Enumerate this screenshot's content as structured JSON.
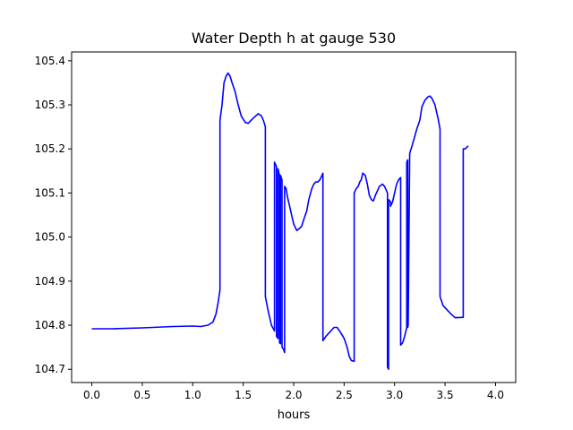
{
  "chart_data": {
    "type": "line",
    "title": "Water Depth h at gauge 530",
    "xlabel": "hours",
    "ylabel": "",
    "xlim": [
      -0.2,
      4.2
    ],
    "ylim": [
      104.67,
      105.42
    ],
    "xticks": [
      0.0,
      0.5,
      1.0,
      1.5,
      2.0,
      2.5,
      3.0,
      3.5,
      4.0
    ],
    "xtick_labels": [
      "0.0",
      "0.5",
      "1.0",
      "1.5",
      "2.0",
      "2.5",
      "3.0",
      "3.5",
      "4.0"
    ],
    "yticks": [
      104.7,
      104.8,
      104.9,
      105.0,
      105.1,
      105.2,
      105.3,
      105.4
    ],
    "ytick_labels": [
      "104.7",
      "104.8",
      "104.9",
      "105.0",
      "105.1",
      "105.2",
      "105.3",
      "105.4"
    ],
    "grid": false,
    "series": [
      {
        "color": "#0000ff",
        "points": [
          [
            0.0,
            104.792
          ],
          [
            0.2,
            104.792
          ],
          [
            0.5,
            104.794
          ],
          [
            0.8,
            104.797
          ],
          [
            1.0,
            104.798
          ],
          [
            1.08,
            104.797
          ],
          [
            1.15,
            104.8
          ],
          [
            1.2,
            104.807
          ],
          [
            1.23,
            104.825
          ],
          [
            1.25,
            104.85
          ],
          [
            1.27,
            104.88
          ],
          [
            1.27,
            105.265
          ],
          [
            1.29,
            105.3
          ],
          [
            1.31,
            105.35
          ],
          [
            1.33,
            105.365
          ],
          [
            1.35,
            105.372
          ],
          [
            1.37,
            105.365
          ],
          [
            1.39,
            105.35
          ],
          [
            1.42,
            105.33
          ],
          [
            1.45,
            105.3
          ],
          [
            1.48,
            105.275
          ],
          [
            1.52,
            105.26
          ],
          [
            1.55,
            105.258
          ],
          [
            1.6,
            105.27
          ],
          [
            1.65,
            105.28
          ],
          [
            1.68,
            105.275
          ],
          [
            1.7,
            105.265
          ],
          [
            1.72,
            105.25
          ],
          [
            1.72,
            104.865
          ],
          [
            1.75,
            104.83
          ],
          [
            1.78,
            104.8
          ],
          [
            1.81,
            104.787
          ],
          [
            1.81,
            105.17
          ],
          [
            1.83,
            105.16
          ],
          [
            1.83,
            104.775
          ],
          [
            1.845,
            104.77
          ],
          [
            1.845,
            105.155
          ],
          [
            1.86,
            105.14
          ],
          [
            1.86,
            104.76
          ],
          [
            1.87,
            104.758
          ],
          [
            1.87,
            105.14
          ],
          [
            1.885,
            105.13
          ],
          [
            1.885,
            104.75
          ],
          [
            1.9,
            104.745
          ],
          [
            1.91,
            104.738
          ],
          [
            1.91,
            105.115
          ],
          [
            1.925,
            105.11
          ],
          [
            1.94,
            105.09
          ],
          [
            1.96,
            105.07
          ],
          [
            1.98,
            105.05
          ],
          [
            2.0,
            105.03
          ],
          [
            2.03,
            105.015
          ],
          [
            2.06,
            105.02
          ],
          [
            2.08,
            105.025
          ],
          [
            2.1,
            105.04
          ],
          [
            2.13,
            105.06
          ],
          [
            2.15,
            105.085
          ],
          [
            2.18,
            105.11
          ],
          [
            2.2,
            105.12
          ],
          [
            2.22,
            105.125
          ],
          [
            2.24,
            105.125
          ],
          [
            2.26,
            105.13
          ],
          [
            2.28,
            105.14
          ],
          [
            2.29,
            105.145
          ],
          [
            2.29,
            104.765
          ],
          [
            2.32,
            104.775
          ],
          [
            2.36,
            104.785
          ],
          [
            2.4,
            104.795
          ],
          [
            2.43,
            104.795
          ],
          [
            2.46,
            104.785
          ],
          [
            2.5,
            104.77
          ],
          [
            2.53,
            104.75
          ],
          [
            2.55,
            104.73
          ],
          [
            2.57,
            104.72
          ],
          [
            2.6,
            104.718
          ],
          [
            2.6,
            105.1
          ],
          [
            2.62,
            105.11
          ],
          [
            2.64,
            105.115
          ],
          [
            2.655,
            105.125
          ],
          [
            2.67,
            105.13
          ],
          [
            2.685,
            105.145
          ],
          [
            2.71,
            105.14
          ],
          [
            2.73,
            105.12
          ],
          [
            2.75,
            105.095
          ],
          [
            2.77,
            105.085
          ],
          [
            2.79,
            105.082
          ],
          [
            2.81,
            105.095
          ],
          [
            2.83,
            105.105
          ],
          [
            2.85,
            105.115
          ],
          [
            2.88,
            105.12
          ],
          [
            2.9,
            105.115
          ],
          [
            2.93,
            105.1
          ],
          [
            2.93,
            104.705
          ],
          [
            2.94,
            104.7
          ],
          [
            2.94,
            105.085
          ],
          [
            2.96,
            105.08
          ],
          [
            2.96,
            105.07
          ],
          [
            2.98,
            105.08
          ],
          [
            3.0,
            105.1
          ],
          [
            3.02,
            105.12
          ],
          [
            3.04,
            105.13
          ],
          [
            3.06,
            105.135
          ],
          [
            3.06,
            104.755
          ],
          [
            3.08,
            104.76
          ],
          [
            3.1,
            104.775
          ],
          [
            3.12,
            104.795
          ],
          [
            3.12,
            105.17
          ],
          [
            3.13,
            105.175
          ],
          [
            3.13,
            104.795
          ],
          [
            3.135,
            104.8
          ],
          [
            3.15,
            105.19
          ],
          [
            3.17,
            105.205
          ],
          [
            3.19,
            105.22
          ],
          [
            3.22,
            105.245
          ],
          [
            3.25,
            105.265
          ],
          [
            3.27,
            105.295
          ],
          [
            3.3,
            105.31
          ],
          [
            3.33,
            105.318
          ],
          [
            3.35,
            105.32
          ],
          [
            3.37,
            105.315
          ],
          [
            3.4,
            105.3
          ],
          [
            3.43,
            105.27
          ],
          [
            3.45,
            105.245
          ],
          [
            3.45,
            104.865
          ],
          [
            3.48,
            104.845
          ],
          [
            3.52,
            104.835
          ],
          [
            3.56,
            104.825
          ],
          [
            3.6,
            104.817
          ],
          [
            3.68,
            104.818
          ],
          [
            3.68,
            105.2
          ],
          [
            3.7,
            105.2
          ],
          [
            3.72,
            105.205
          ],
          [
            3.73,
            105.207
          ]
        ]
      }
    ]
  }
}
